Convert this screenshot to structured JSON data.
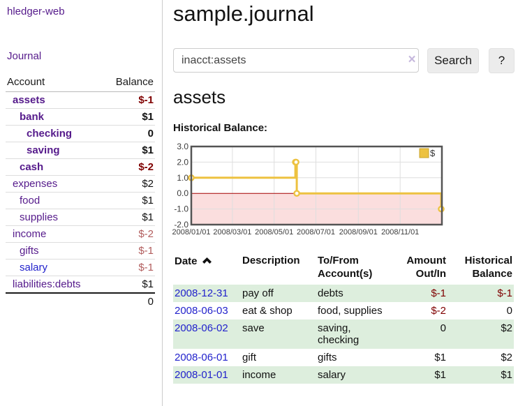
{
  "theme": {
    "link_purple": "#551a8b",
    "link_blue": "#2222cc",
    "negative_red": "#7f0000",
    "negative_muted_red": "#b25d5d",
    "row_stripe_green": "#ddeedd",
    "chart_line_yellow": "#edc240",
    "chart_negative_fill": "#fbdede",
    "chart_zero_line": "#a40000"
  },
  "sidebar": {
    "brand": "hledger-web",
    "journal_link": "Journal",
    "accounts_table": {
      "col_account": "Account",
      "col_balance": "Balance",
      "rows": [
        {
          "name": "assets",
          "depth": 0,
          "bold": true,
          "balance": "$-1",
          "bclass": "neg",
          "link": "purple"
        },
        {
          "name": "bank",
          "depth": 1,
          "bold": true,
          "balance": "$1",
          "bclass": "",
          "link": "purple"
        },
        {
          "name": "checking",
          "depth": 2,
          "bold": true,
          "balance": "0",
          "bclass": "",
          "link": "purple"
        },
        {
          "name": "saving",
          "depth": 2,
          "bold": true,
          "balance": "$1",
          "bclass": "",
          "link": "purple"
        },
        {
          "name": "cash",
          "depth": 1,
          "bold": true,
          "balance": "$-2",
          "bclass": "neg",
          "link": "purple"
        },
        {
          "name": "expenses",
          "depth": 0,
          "bold": false,
          "balance": "$2",
          "bclass": "",
          "link": "purple"
        },
        {
          "name": "food",
          "depth": 1,
          "bold": false,
          "balance": "$1",
          "bclass": "",
          "link": "purple"
        },
        {
          "name": "supplies",
          "depth": 1,
          "bold": false,
          "balance": "$1",
          "bclass": "",
          "link": "purple"
        },
        {
          "name": "income",
          "depth": 0,
          "bold": false,
          "balance": "$-2",
          "bclass": "negmuted",
          "link": "purple"
        },
        {
          "name": "gifts",
          "depth": 1,
          "bold": false,
          "balance": "$-1",
          "bclass": "negmuted",
          "link": "purple"
        },
        {
          "name": "salary",
          "depth": 1,
          "bold": false,
          "balance": "$-1",
          "bclass": "negmuted",
          "link": "blue"
        },
        {
          "name": "liabilities:debts",
          "depth": 0,
          "bold": false,
          "balance": "$1",
          "bclass": "",
          "link": "purple"
        }
      ],
      "total": "0"
    }
  },
  "header": {
    "title": "sample.journal"
  },
  "search": {
    "query": "inacct:assets",
    "clear_icon": "×",
    "search_button": "Search",
    "help_button": "?"
  },
  "account_page": {
    "heading": "assets",
    "chart_label": "Historical Balance:"
  },
  "chart_data": {
    "type": "line",
    "style": "step",
    "title": "Historical Balance",
    "series": [
      {
        "name": "$",
        "color": "#edc240",
        "points": [
          [
            "2008-01-01",
            1
          ],
          [
            "2008-06-01",
            2
          ],
          [
            "2008-06-02",
            2
          ],
          [
            "2008-06-03",
            0
          ],
          [
            "2008-12-31",
            -1
          ]
        ]
      }
    ],
    "x_ticks": [
      "2008/01/01",
      "2008/03/01",
      "2008/05/01",
      "2008/07/01",
      "2008/09/01",
      "2008/11/01"
    ],
    "y_ticks": [
      3.0,
      2.0,
      1.0,
      0.0,
      -1.0,
      -2.0
    ],
    "ylim": [
      -2,
      3
    ],
    "x_range": [
      "2008-01-01",
      "2009-01-01"
    ],
    "grid": true,
    "legend_position": "top-right",
    "negative_region": {
      "fill": "#fbdede",
      "line": "#a40000"
    }
  },
  "register_table": {
    "headers": {
      "date": "Date",
      "description": "Description",
      "accounts": "To/From Account(s)",
      "amount": "Amount Out/In",
      "balance": "Historical Balance"
    },
    "rows": [
      {
        "date": "2008-12-31",
        "description": "pay off",
        "accounts": "debts",
        "amount": "$-1",
        "amount_neg": true,
        "balance": "$-1",
        "balance_neg": true,
        "stripe": true
      },
      {
        "date": "2008-06-03",
        "description": "eat & shop",
        "accounts": "food, supplies",
        "amount": "$-2",
        "amount_neg": true,
        "balance": "0",
        "balance_neg": false,
        "stripe": false
      },
      {
        "date": "2008-06-02",
        "description": "save",
        "accounts": "saving, checking",
        "amount": "0",
        "amount_neg": false,
        "balance": "$2",
        "balance_neg": false,
        "stripe": true
      },
      {
        "date": "2008-06-01",
        "description": "gift",
        "accounts": "gifts",
        "amount": "$1",
        "amount_neg": false,
        "balance": "$2",
        "balance_neg": false,
        "stripe": false
      },
      {
        "date": "2008-01-01",
        "description": "income",
        "accounts": "salary",
        "amount": "$1",
        "amount_neg": false,
        "balance": "$1",
        "balance_neg": false,
        "stripe": true
      }
    ]
  }
}
